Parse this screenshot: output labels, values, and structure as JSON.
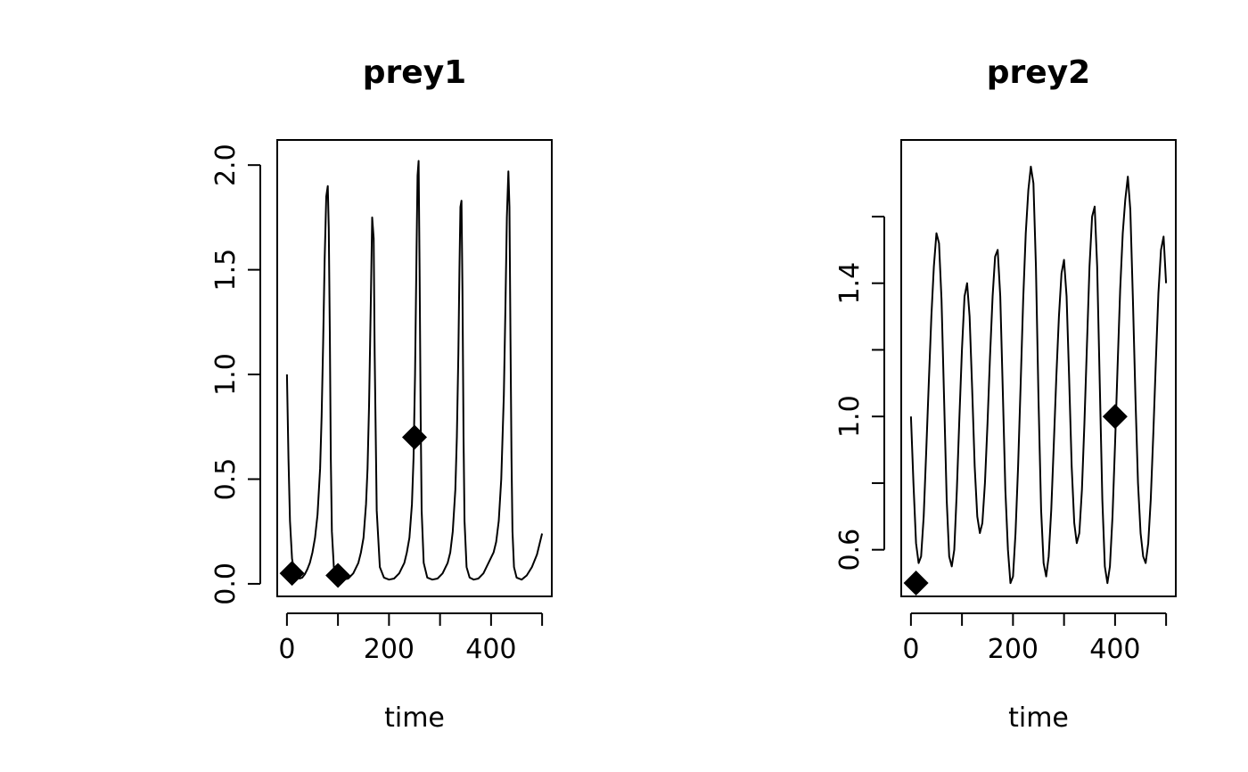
{
  "chart_data": [
    {
      "type": "line",
      "title": "prey1",
      "xlabel": "time",
      "ylabel": "",
      "xlim": [
        -19,
        519
      ],
      "ylim": [
        -0.06,
        2.12
      ],
      "xticks": [
        0,
        100,
        200,
        300,
        400,
        500
      ],
      "xtick_labels": [
        "0",
        "",
        "200",
        "",
        "400",
        ""
      ],
      "yticks": [
        0.0,
        0.5,
        1.0,
        1.5,
        2.0
      ],
      "ytick_labels": [
        "0.0",
        "0.5",
        "1.0",
        "1.5",
        "2.0"
      ],
      "series": [
        {
          "x": [
            0,
            3,
            6,
            10,
            15,
            20,
            25,
            30,
            35,
            40,
            45,
            50,
            55,
            60,
            65,
            68,
            71,
            74,
            77,
            80,
            82,
            84,
            86,
            88,
            92,
            100,
            110,
            120,
            130,
            140,
            145,
            150,
            155,
            158,
            161,
            164,
            167,
            170,
            172,
            176,
            182,
            190,
            200,
            210,
            220,
            230,
            235,
            240,
            245,
            248,
            251,
            254,
            256,
            258,
            260,
            262,
            264,
            268,
            275,
            285,
            295,
            305,
            315,
            320,
            325,
            330,
            333,
            336,
            338,
            340,
            342,
            344,
            346,
            348,
            352,
            358,
            366,
            375,
            385,
            395,
            405,
            410,
            415,
            420,
            425,
            428,
            431,
            434,
            436,
            438,
            440,
            442,
            445,
            450,
            460,
            470,
            480,
            490,
            500
          ],
          "y": [
            1.0,
            0.6,
            0.3,
            0.12,
            0.05,
            0.03,
            0.025,
            0.03,
            0.045,
            0.07,
            0.1,
            0.15,
            0.22,
            0.33,
            0.55,
            0.8,
            1.15,
            1.55,
            1.85,
            1.9,
            1.7,
            1.2,
            0.6,
            0.25,
            0.08,
            0.03,
            0.02,
            0.025,
            0.05,
            0.1,
            0.15,
            0.22,
            0.38,
            0.55,
            0.85,
            1.3,
            1.75,
            1.65,
            1.1,
            0.35,
            0.08,
            0.03,
            0.02,
            0.025,
            0.05,
            0.1,
            0.15,
            0.22,
            0.38,
            0.6,
            1.0,
            1.6,
            1.95,
            2.02,
            1.5,
            0.8,
            0.35,
            0.1,
            0.03,
            0.02,
            0.025,
            0.05,
            0.1,
            0.15,
            0.25,
            0.45,
            0.7,
            1.1,
            1.5,
            1.8,
            1.83,
            1.4,
            0.7,
            0.3,
            0.08,
            0.03,
            0.02,
            0.025,
            0.05,
            0.1,
            0.15,
            0.2,
            0.3,
            0.5,
            0.9,
            1.3,
            1.75,
            1.97,
            1.8,
            1.2,
            0.6,
            0.25,
            0.08,
            0.03,
            0.02,
            0.04,
            0.08,
            0.14,
            0.24
          ]
        }
      ],
      "points": [
        {
          "x": 10,
          "y": 0.05
        },
        {
          "x": 100,
          "y": 0.04
        },
        {
          "x": 250,
          "y": 0.7
        }
      ]
    },
    {
      "type": "line",
      "title": "prey2",
      "xlabel": "time",
      "ylabel": "",
      "xlim": [
        -19,
        519
      ],
      "ylim": [
        0.46,
        1.83
      ],
      "xticks": [
        0,
        100,
        200,
        300,
        400,
        500
      ],
      "xtick_labels": [
        "0",
        "",
        "200",
        "",
        "400",
        ""
      ],
      "yticks": [
        0.6,
        0.8,
        1.0,
        1.2,
        1.4,
        1.6
      ],
      "ytick_labels": [
        "0.6",
        "",
        "1.0",
        "",
        "1.4",
        ""
      ],
      "series": [
        {
          "x": [
            0,
            5,
            10,
            15,
            20,
            25,
            30,
            35,
            40,
            45,
            50,
            55,
            60,
            65,
            70,
            75,
            80,
            85,
            90,
            95,
            100,
            105,
            110,
            115,
            120,
            125,
            130,
            135,
            140,
            145,
            150,
            155,
            160,
            165,
            170,
            175,
            180,
            185,
            190,
            195,
            200,
            205,
            210,
            215,
            220,
            225,
            230,
            235,
            240,
            245,
            250,
            255,
            260,
            265,
            270,
            275,
            280,
            285,
            290,
            295,
            300,
            305,
            310,
            315,
            320,
            325,
            330,
            335,
            340,
            345,
            350,
            355,
            360,
            365,
            370,
            375,
            380,
            385,
            390,
            395,
            400,
            405,
            410,
            415,
            420,
            425,
            430,
            435,
            440,
            445,
            450,
            455,
            460,
            465,
            470,
            475,
            480,
            485,
            490,
            495,
            500
          ],
          "y": [
            1.0,
            0.8,
            0.62,
            0.56,
            0.58,
            0.7,
            0.9,
            1.1,
            1.3,
            1.45,
            1.55,
            1.52,
            1.35,
            1.05,
            0.75,
            0.58,
            0.55,
            0.6,
            0.78,
            1.0,
            1.2,
            1.36,
            1.4,
            1.3,
            1.08,
            0.85,
            0.7,
            0.65,
            0.68,
            0.8,
            0.98,
            1.18,
            1.36,
            1.48,
            1.5,
            1.36,
            1.08,
            0.78,
            0.6,
            0.5,
            0.52,
            0.65,
            0.85,
            1.1,
            1.35,
            1.55,
            1.68,
            1.75,
            1.7,
            1.45,
            1.05,
            0.72,
            0.56,
            0.52,
            0.58,
            0.72,
            0.92,
            1.12,
            1.3,
            1.43,
            1.47,
            1.36,
            1.12,
            0.85,
            0.68,
            0.62,
            0.65,
            0.78,
            0.98,
            1.22,
            1.45,
            1.6,
            1.63,
            1.45,
            1.1,
            0.75,
            0.55,
            0.5,
            0.55,
            0.7,
            0.92,
            1.15,
            1.38,
            1.55,
            1.65,
            1.72,
            1.62,
            1.35,
            1.05,
            0.8,
            0.65,
            0.58,
            0.56,
            0.62,
            0.75,
            0.95,
            1.17,
            1.37,
            1.5,
            1.54,
            1.4
          ]
        }
      ],
      "points": [
        {
          "x": 10,
          "y": 0.5
        },
        {
          "x": 400,
          "y": 1.0
        }
      ]
    }
  ]
}
